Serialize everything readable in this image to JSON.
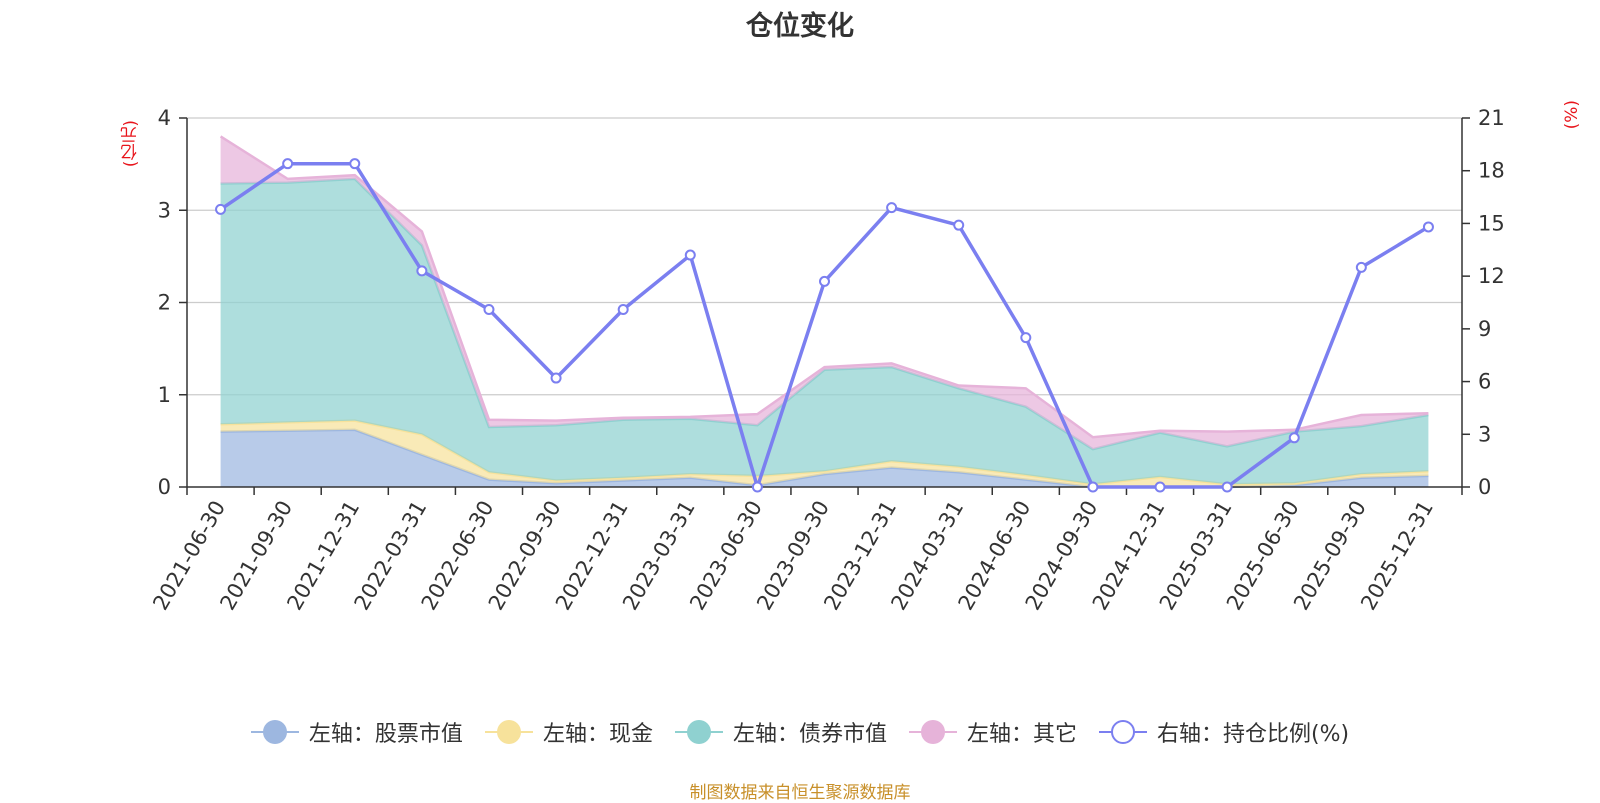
{
  "title": "仓位变化",
  "left_unit": "(亿元)",
  "right_unit": "(%)",
  "footer": "制图数据来自恒生聚源数据库",
  "colors": {
    "stock": "#9db7e0",
    "cash": "#f7e29b",
    "bond": "#8fd1d0",
    "other": "#e6b3d9",
    "ratio": "#7b7ff0",
    "unit": "#e8141b"
  },
  "legend": [
    {
      "label": "左轴：股票市值",
      "key": "stock",
      "icon": "filled-circle"
    },
    {
      "label": "左轴：现金",
      "key": "cash",
      "icon": "filled-circle"
    },
    {
      "label": "左轴：债券市值",
      "key": "bond",
      "icon": "filled-circle"
    },
    {
      "label": "左轴：其它",
      "key": "other",
      "icon": "filled-circle"
    },
    {
      "label": "右轴：持仓比例(%)",
      "key": "ratio",
      "icon": "hollow-circle"
    }
  ],
  "chart_data": {
    "type": "area",
    "title": "仓位变化",
    "categories": [
      "2021-06-30",
      "2021-09-30",
      "2021-12-31",
      "2022-03-31",
      "2022-06-30",
      "2022-09-30",
      "2022-12-31",
      "2023-03-31",
      "2023-06-30",
      "2023-09-30",
      "2023-12-31",
      "2024-03-31",
      "2024-06-30",
      "2024-09-30",
      "2024-12-31",
      "2025-03-31",
      "2025-06-30",
      "2025-09-30",
      "2025-12-31"
    ],
    "left_axis": {
      "unit": "(亿元)",
      "ylim": [
        0,
        4
      ],
      "ticks": [
        0,
        1,
        2,
        3,
        4
      ]
    },
    "right_axis": {
      "unit": "(%)",
      "ylim": [
        0,
        21
      ],
      "ticks": [
        0,
        3,
        6,
        9,
        12,
        15,
        18,
        21
      ]
    },
    "stacked": true,
    "grid": true,
    "legend_position": "bottom",
    "series": [
      {
        "name": "左轴：股票市值",
        "axis": "left",
        "values": [
          0.6,
          0.61,
          0.62,
          0.35,
          0.08,
          0.04,
          0.07,
          0.1,
          0.02,
          0.14,
          0.21,
          0.16,
          0.08,
          0.0,
          0.0,
          0.0,
          0.02,
          0.1,
          0.12
        ]
      },
      {
        "name": "左轴：现金",
        "axis": "left",
        "values": [
          0.08,
          0.09,
          0.1,
          0.22,
          0.08,
          0.03,
          0.03,
          0.04,
          0.1,
          0.03,
          0.07,
          0.06,
          0.05,
          0.03,
          0.11,
          0.03,
          0.02,
          0.04,
          0.05
        ]
      },
      {
        "name": "左轴：债券市值",
        "axis": "left",
        "values": [
          2.61,
          2.6,
          2.62,
          2.05,
          0.49,
          0.6,
          0.63,
          0.6,
          0.55,
          1.1,
          1.02,
          0.85,
          0.74,
          0.38,
          0.48,
          0.41,
          0.56,
          0.52,
          0.61
        ]
      },
      {
        "name": "左轴：其它",
        "axis": "left",
        "values": [
          0.51,
          0.04,
          0.04,
          0.15,
          0.08,
          0.05,
          0.02,
          0.02,
          0.12,
          0.03,
          0.04,
          0.03,
          0.2,
          0.13,
          0.02,
          0.16,
          0.02,
          0.12,
          0.02
        ]
      },
      {
        "name": "右轴：持仓比例(%)",
        "axis": "right",
        "type": "line",
        "values": [
          15.8,
          18.4,
          18.4,
          12.3,
          10.1,
          6.2,
          10.1,
          13.2,
          0.0,
          11.7,
          15.9,
          14.9,
          8.5,
          0.0,
          0.0,
          0.0,
          2.8,
          12.5,
          14.8
        ]
      }
    ]
  }
}
